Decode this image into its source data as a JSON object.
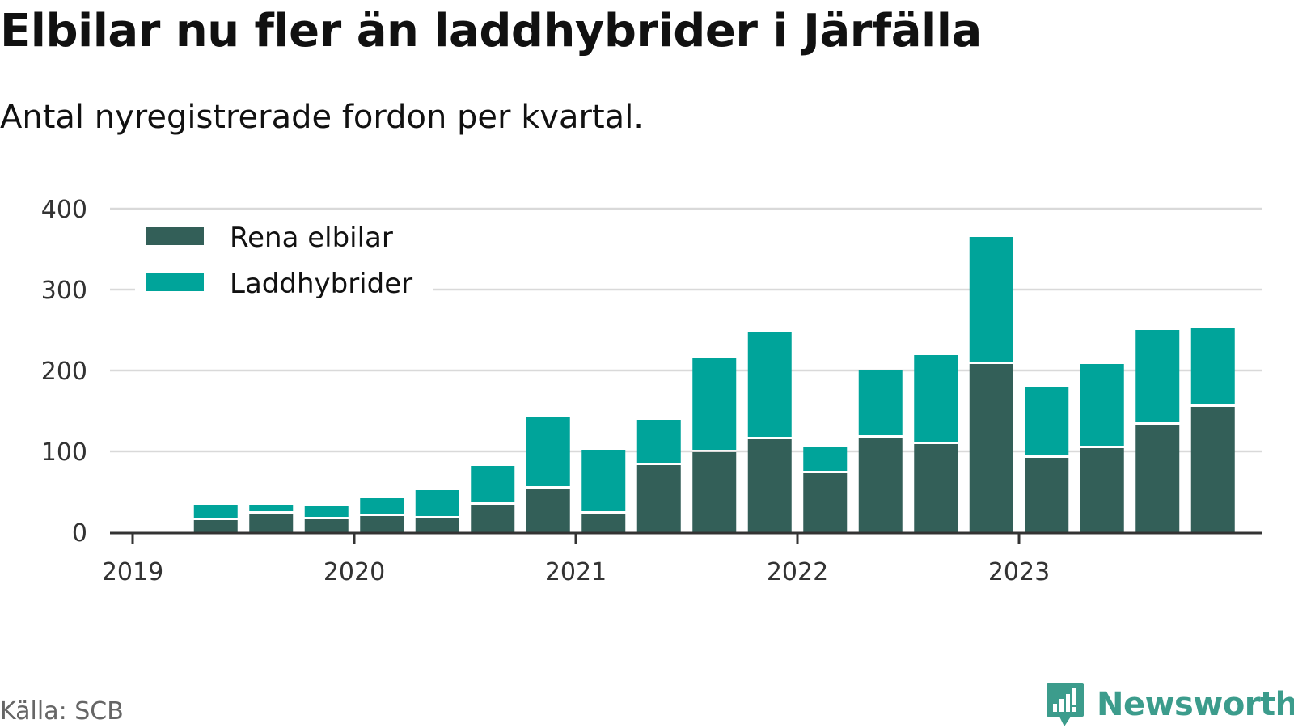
{
  "title": "Elbilar nu fler än laddhybrider i Järfälla",
  "subtitle": "Antal nyregistrerade fordon per kvartal.",
  "source": "Källa: SCB",
  "brand": "Newsworthy",
  "colors": {
    "rena_elbilar": "#335f58",
    "laddhybrider": "#00a49a",
    "grid": "#d9d9d9",
    "axis": "#333333",
    "brand": "#3c9c8c"
  },
  "chart_data": {
    "type": "bar",
    "stacked": true,
    "title": "Elbilar nu fler än laddhybrider i Järfälla",
    "subtitle": "Antal nyregistrerade fordon per kvartal.",
    "xlabel": "",
    "ylabel": "",
    "ylim": [
      0,
      400
    ],
    "yticks": [
      0,
      100,
      200,
      300,
      400
    ],
    "grid": true,
    "legend_position": "top-left",
    "x_tick_labels": [
      "2019",
      "2020",
      "2021",
      "2022",
      "2023"
    ],
    "categories": [
      "2019 Q2",
      "2019 Q3",
      "2019 Q4",
      "2020 Q1",
      "2020 Q2",
      "2020 Q3",
      "2020 Q4",
      "2021 Q1",
      "2021 Q2",
      "2021 Q3",
      "2021 Q4",
      "2022 Q1",
      "2022 Q2",
      "2022 Q3",
      "2022 Q4",
      "2023 Q1",
      "2023 Q2",
      "2023 Q3",
      "2023 Q4"
    ],
    "series": [
      {
        "name": "Rena elbilar",
        "values": [
          15,
          23,
          16,
          20,
          17,
          34,
          54,
          23,
          83,
          99,
          115,
          73,
          117,
          109,
          208,
          92,
          104,
          133,
          155
        ]
      },
      {
        "name": "Laddhybrider",
        "values": [
          19,
          11,
          16,
          22,
          35,
          48,
          89,
          79,
          56,
          116,
          132,
          32,
          84,
          110,
          157,
          88,
          104,
          117,
          98
        ]
      }
    ]
  }
}
